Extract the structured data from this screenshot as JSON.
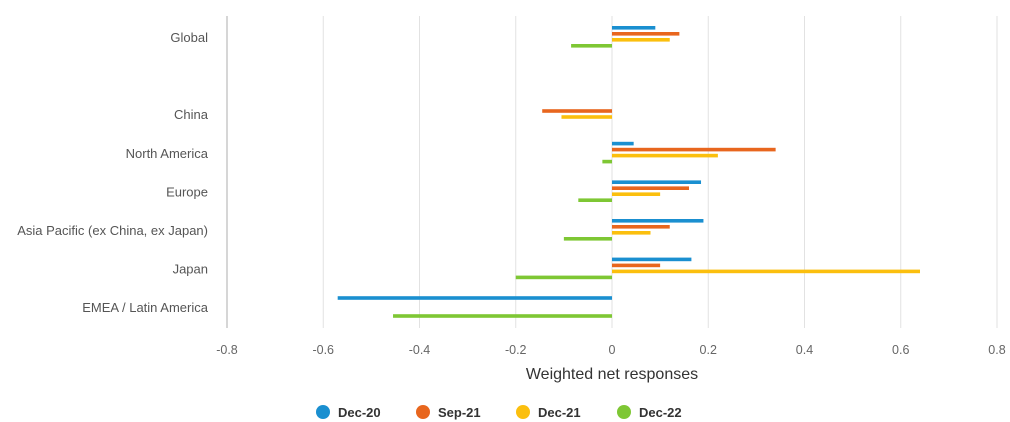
{
  "chart_data": {
    "type": "bar",
    "orientation": "horizontal",
    "xlabel": "Weighted net responses",
    "xlim": [
      -0.8,
      0.8
    ],
    "xticks": [
      "-0.8",
      "-0.6",
      "-0.4",
      "-0.2",
      "0",
      "0.2",
      "0.4",
      "0.6",
      "0.8"
    ],
    "grid": true,
    "legend_position": "bottom",
    "categories": [
      "Global",
      "",
      "China",
      "North America",
      "Europe",
      "Asia Pacific (ex China, ex Japan)",
      "Japan",
      "EMEA / Latin America"
    ],
    "series": [
      {
        "name": "Dec-20",
        "color": "#1a8fd0",
        "values": [
          0.09,
          null,
          null,
          0.045,
          0.185,
          0.19,
          0.165,
          -0.57
        ]
      },
      {
        "name": "Sep-21",
        "color": "#e8661e",
        "values": [
          0.14,
          null,
          -0.145,
          0.34,
          0.16,
          0.12,
          0.1,
          null
        ]
      },
      {
        "name": "Dec-21",
        "color": "#fbbf0e",
        "values": [
          0.12,
          null,
          -0.105,
          0.22,
          0.1,
          0.08,
          0.64,
          null
        ]
      },
      {
        "name": "Dec-22",
        "color": "#7ec734",
        "values": [
          -0.085,
          null,
          null,
          -0.02,
          -0.07,
          -0.1,
          -0.2,
          -0.455
        ]
      }
    ]
  }
}
